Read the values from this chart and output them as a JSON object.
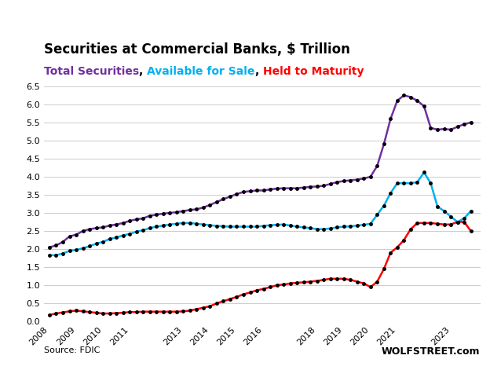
{
  "title": "Securities at Commercial Banks, $ Trillion",
  "subtitle_parts": [
    {
      "text": "Total Securities",
      "color": "#7030A0"
    },
    {
      "text": ", ",
      "color": "#000000"
    },
    {
      "text": "Available for Sale",
      "color": "#00B0F0"
    },
    {
      "text": ", ",
      "color": "#000000"
    },
    {
      "text": "Held to Maturity",
      "color": "#FF0000"
    }
  ],
  "source": "Source: FDIC",
  "watermark": "WOLFSTREET.com",
  "ylim": [
    0.0,
    6.5
  ],
  "yticks": [
    0.0,
    0.5,
    1.0,
    1.5,
    2.0,
    2.5,
    3.0,
    3.5,
    4.0,
    4.5,
    5.0,
    5.5,
    6.0,
    6.5
  ],
  "background_color": "#FFFFFF",
  "total_color": "#7030A0",
  "afs_color": "#00B0F0",
  "htm_color": "#FF0000",
  "dot_color": "#000000",
  "dates_total": [
    2008.0,
    2008.25,
    2008.5,
    2008.75,
    2009.0,
    2009.25,
    2009.5,
    2009.75,
    2010.0,
    2010.25,
    2010.5,
    2010.75,
    2011.0,
    2011.25,
    2011.5,
    2011.75,
    2012.0,
    2012.25,
    2012.5,
    2012.75,
    2013.0,
    2013.25,
    2013.5,
    2013.75,
    2014.0,
    2014.25,
    2014.5,
    2014.75,
    2015.0,
    2015.25,
    2015.5,
    2015.75,
    2016.0,
    2016.25,
    2016.5,
    2016.75,
    2017.0,
    2017.25,
    2017.5,
    2017.75,
    2018.0,
    2018.25,
    2018.5,
    2018.75,
    2019.0,
    2019.25,
    2019.5,
    2019.75,
    2020.0,
    2020.25,
    2020.5,
    2020.75,
    2021.0,
    2021.25,
    2021.5,
    2021.75,
    2022.0,
    2022.25,
    2022.5,
    2022.75,
    2023.0,
    2023.25,
    2023.5,
    2023.75
  ],
  "values_total": [
    2.05,
    2.1,
    2.2,
    2.35,
    2.4,
    2.5,
    2.55,
    2.58,
    2.6,
    2.65,
    2.68,
    2.72,
    2.78,
    2.82,
    2.85,
    2.92,
    2.95,
    2.98,
    3.0,
    3.02,
    3.05,
    3.08,
    3.1,
    3.15,
    3.22,
    3.3,
    3.38,
    3.45,
    3.52,
    3.58,
    3.6,
    3.62,
    3.62,
    3.65,
    3.67,
    3.68,
    3.68,
    3.68,
    3.7,
    3.72,
    3.73,
    3.75,
    3.8,
    3.85,
    3.88,
    3.9,
    3.92,
    3.95,
    4.0,
    4.3,
    4.9,
    5.6,
    6.1,
    6.25,
    6.2,
    6.1,
    5.95,
    5.35,
    5.3,
    5.32,
    5.3,
    5.38,
    5.45,
    5.5
  ],
  "dates_afs": [
    2008.0,
    2008.25,
    2008.5,
    2008.75,
    2009.0,
    2009.25,
    2009.5,
    2009.75,
    2010.0,
    2010.25,
    2010.5,
    2010.75,
    2011.0,
    2011.25,
    2011.5,
    2011.75,
    2012.0,
    2012.25,
    2012.5,
    2012.75,
    2013.0,
    2013.25,
    2013.5,
    2013.75,
    2014.0,
    2014.25,
    2014.5,
    2014.75,
    2015.0,
    2015.25,
    2015.5,
    2015.75,
    2016.0,
    2016.25,
    2016.5,
    2016.75,
    2017.0,
    2017.25,
    2017.5,
    2017.75,
    2018.0,
    2018.25,
    2018.5,
    2018.75,
    2019.0,
    2019.25,
    2019.5,
    2019.75,
    2020.0,
    2020.25,
    2020.5,
    2020.75,
    2021.0,
    2021.25,
    2021.5,
    2021.75,
    2022.0,
    2022.25,
    2022.5,
    2022.75,
    2023.0,
    2023.25,
    2023.5,
    2023.75
  ],
  "values_afs": [
    1.83,
    1.83,
    1.88,
    1.95,
    1.98,
    2.02,
    2.08,
    2.15,
    2.2,
    2.28,
    2.32,
    2.38,
    2.42,
    2.48,
    2.52,
    2.58,
    2.62,
    2.65,
    2.68,
    2.7,
    2.72,
    2.72,
    2.7,
    2.68,
    2.66,
    2.64,
    2.63,
    2.62,
    2.62,
    2.62,
    2.62,
    2.62,
    2.64,
    2.66,
    2.67,
    2.68,
    2.65,
    2.62,
    2.6,
    2.58,
    2.55,
    2.55,
    2.57,
    2.6,
    2.62,
    2.63,
    2.65,
    2.67,
    2.7,
    2.95,
    3.2,
    3.55,
    3.82,
    3.82,
    3.82,
    3.85,
    4.12,
    3.82,
    3.18,
    3.05,
    2.9,
    2.75,
    2.85,
    3.05
  ],
  "dates_htm": [
    2008.0,
    2008.25,
    2008.5,
    2008.75,
    2009.0,
    2009.25,
    2009.5,
    2009.75,
    2010.0,
    2010.25,
    2010.5,
    2010.75,
    2011.0,
    2011.25,
    2011.5,
    2011.75,
    2012.0,
    2012.25,
    2012.5,
    2012.75,
    2013.0,
    2013.25,
    2013.5,
    2013.75,
    2014.0,
    2014.25,
    2014.5,
    2014.75,
    2015.0,
    2015.25,
    2015.5,
    2015.75,
    2016.0,
    2016.25,
    2016.5,
    2016.75,
    2017.0,
    2017.25,
    2017.5,
    2017.75,
    2018.0,
    2018.25,
    2018.5,
    2018.75,
    2019.0,
    2019.25,
    2019.5,
    2019.75,
    2020.0,
    2020.25,
    2020.5,
    2020.75,
    2021.0,
    2021.25,
    2021.5,
    2021.75,
    2022.0,
    2022.25,
    2022.5,
    2022.75,
    2023.0,
    2023.25,
    2023.5,
    2023.75
  ],
  "values_htm": [
    0.18,
    0.22,
    0.25,
    0.28,
    0.3,
    0.28,
    0.26,
    0.24,
    0.22,
    0.22,
    0.23,
    0.24,
    0.26,
    0.26,
    0.27,
    0.27,
    0.27,
    0.27,
    0.27,
    0.27,
    0.28,
    0.3,
    0.34,
    0.38,
    0.42,
    0.5,
    0.56,
    0.62,
    0.68,
    0.75,
    0.8,
    0.86,
    0.9,
    0.95,
    1.0,
    1.02,
    1.05,
    1.07,
    1.08,
    1.1,
    1.12,
    1.15,
    1.18,
    1.18,
    1.18,
    1.15,
    1.1,
    1.05,
    0.95,
    1.1,
    1.45,
    1.9,
    2.05,
    2.25,
    2.55,
    2.72,
    2.72,
    2.72,
    2.7,
    2.68,
    2.68,
    2.75,
    2.75,
    2.5
  ],
  "xtick_years": [
    2008,
    2009,
    2010,
    2011,
    2013,
    2014,
    2015,
    2016,
    2018,
    2019,
    2020,
    2021,
    2023
  ]
}
